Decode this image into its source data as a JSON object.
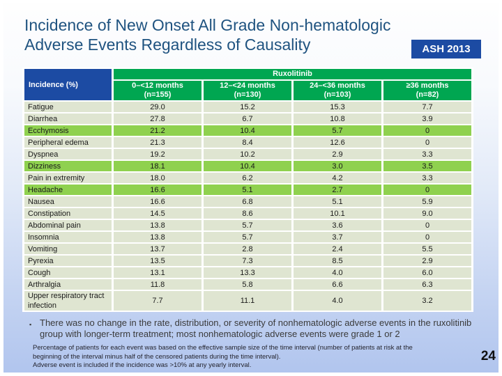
{
  "slide": {
    "title_line1": "Incidence of New Onset All Grade Non-hematologic",
    "title_line2": "Adverse Events Regardless of Causality",
    "badge": "ASH 2013",
    "page_number": "24"
  },
  "table": {
    "corner_header": "Incidence (%)",
    "group_header": "Ruxolitinib",
    "columns": [
      {
        "label": "0–<12 months",
        "n": "(n=155)"
      },
      {
        "label": "12–<24 months",
        "n": "(n=130)"
      },
      {
        "label": "24–<36 months",
        "n": "(n=103)"
      },
      {
        "label": "≥36 months",
        "n": "(n=82)"
      }
    ],
    "rows": [
      {
        "label": "Fatigue",
        "values": [
          "29.0",
          "15.2",
          "15.3",
          "7.7"
        ],
        "highlight": false
      },
      {
        "label": "Diarrhea",
        "values": [
          "27.8",
          "6.7",
          "10.8",
          "3.9"
        ],
        "highlight": false
      },
      {
        "label": "Ecchymosis",
        "values": [
          "21.2",
          "10.4",
          "5.7",
          "0"
        ],
        "highlight": true
      },
      {
        "label": "Peripheral edema",
        "values": [
          "21.3",
          "8.4",
          "12.6",
          "0"
        ],
        "highlight": false
      },
      {
        "label": "Dyspnea",
        "values": [
          "19.2",
          "10.2",
          "2.9",
          "3.3"
        ],
        "highlight": false
      },
      {
        "label": "Dizziness",
        "values": [
          "18.1",
          "10.4",
          "3.0",
          "3.5"
        ],
        "highlight": true
      },
      {
        "label": "Pain in extremity",
        "values": [
          "18.0",
          "6.2",
          "4.2",
          "3.3"
        ],
        "highlight": false
      },
      {
        "label": "Headache",
        "values": [
          "16.6",
          "5.1",
          "2.7",
          "0"
        ],
        "highlight": true
      },
      {
        "label": "Nausea",
        "values": [
          "16.6",
          "6.8",
          "5.1",
          "5.9"
        ],
        "highlight": false
      },
      {
        "label": "Constipation",
        "values": [
          "14.5",
          "8.6",
          "10.1",
          "9.0"
        ],
        "highlight": false
      },
      {
        "label": "Abdominal pain",
        "values": [
          "13.8",
          "5.7",
          "3.6",
          "0"
        ],
        "highlight": false
      },
      {
        "label": "Insomnia",
        "values": [
          "13.8",
          "5.7",
          "3.7",
          "0"
        ],
        "highlight": false
      },
      {
        "label": "Vomiting",
        "values": [
          "13.7",
          "2.8",
          "2.4",
          "5.5"
        ],
        "highlight": false
      },
      {
        "label": "Pyrexia",
        "values": [
          "13.5",
          "7.3",
          "8.5",
          "2.9"
        ],
        "highlight": false
      },
      {
        "label": "Cough",
        "values": [
          "13.1",
          "13.3",
          "4.0",
          "6.0"
        ],
        "highlight": false
      },
      {
        "label": "Arthralgia",
        "values": [
          "11.8",
          "5.8",
          "6.6",
          "6.3"
        ],
        "highlight": false
      },
      {
        "label": "Upper respiratory tract infection",
        "values": [
          "7.7",
          "11.1",
          "4.0",
          "3.2"
        ],
        "highlight": false
      }
    ]
  },
  "bullet": {
    "marker": "▪",
    "text": "There was no change in the rate, distribution, or severity of nonhematologic adverse events in the ruxolitinib group with longer-term treatment; most nonhematologic adverse events were grade 1 or 2"
  },
  "footnotes": [
    "Percentage of patients for each event was based on the effective sample size of the time interval (number of patients at risk at the",
    "beginning of the interval minus half of the censored patients during the time interval).",
    "Adverse event is included if the incidence was >10% at any yearly interval."
  ],
  "colors": {
    "title-blue": "#1F5380",
    "badge-blue": "#1C4BA3",
    "corner-blue": "#1C4BA3",
    "header-green": "#00A651",
    "row-light": "#DFE5D1",
    "row-highlight": "#8FD14F",
    "bg-bottom": "#B1C5EE"
  }
}
